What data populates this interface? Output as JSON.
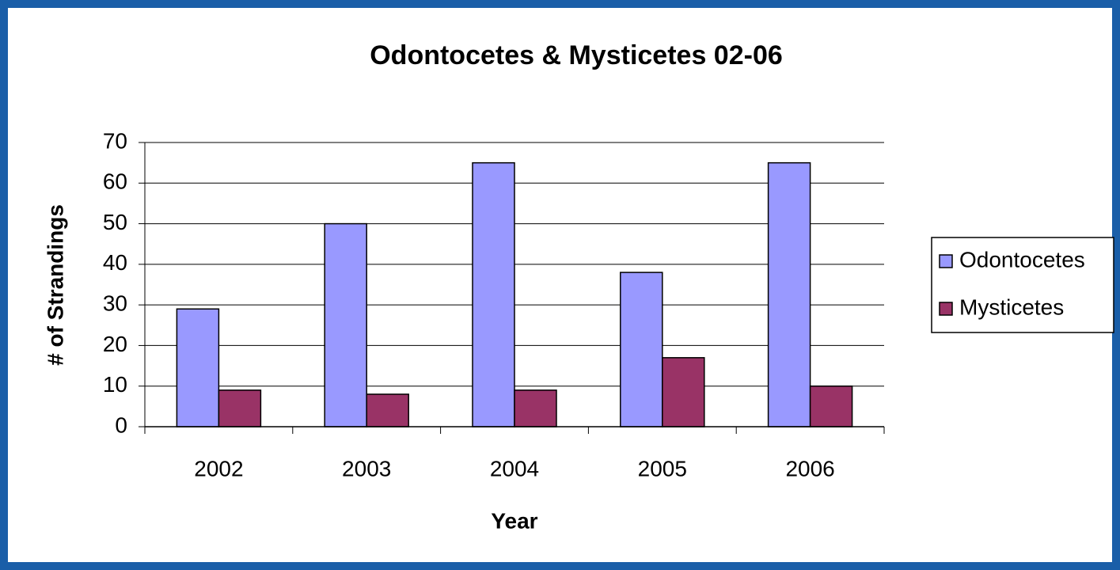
{
  "chart_data": {
    "type": "bar",
    "title": "Odontocetes & Mysticetes  02-06",
    "x_label": "Year",
    "y_label": "# of Strandings",
    "categories": [
      "2002",
      "2003",
      "2004",
      "2005",
      "2006"
    ],
    "series": [
      {
        "name": "Odontocetes",
        "color": "#9999ff",
        "values": [
          29,
          50,
          65,
          38,
          65
        ]
      },
      {
        "name": "Mysticetes",
        "color": "#993366",
        "values": [
          9,
          8,
          9,
          17,
          10
        ]
      }
    ],
    "ylim": [
      0,
      70
    ],
    "yticks": [
      0,
      10,
      20,
      30,
      40,
      50,
      60,
      70
    ],
    "grid": true,
    "legend": "right"
  }
}
